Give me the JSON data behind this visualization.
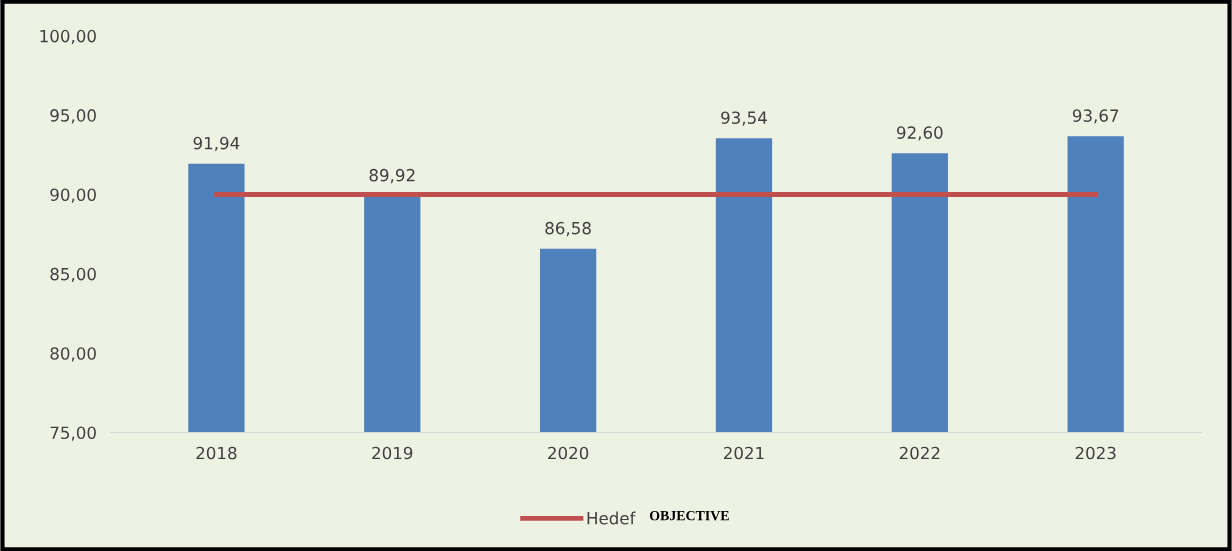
{
  "chart_data": {
    "type": "bar",
    "categories": [
      "2018",
      "2019",
      "2020",
      "2021",
      "2022",
      "2023"
    ],
    "series": [
      {
        "color": "#4f81bd",
        "values": [
          91.94,
          89.92,
          86.58,
          93.54,
          92.6,
          93.67
        ],
        "value_labels": [
          "91,94",
          "89,92",
          "86,58",
          "93,54",
          "92,60",
          "93,67"
        ]
      },
      {
        "type": "line",
        "name": "Hedef",
        "color": "#c0504d",
        "values": [
          90,
          90,
          90,
          90,
          90,
          90
        ]
      }
    ],
    "ylim": [
      75,
      100
    ],
    "yticks": [
      {
        "value": 75,
        "label": "75,00"
      },
      {
        "value": 80,
        "label": "80,00"
      },
      {
        "value": 85,
        "label": "85,00"
      },
      {
        "value": 90,
        "label": "90,00"
      },
      {
        "value": 95,
        "label": "95,00"
      },
      {
        "value": 100,
        "label": "100,00"
      }
    ],
    "grid": false,
    "legend": "bottom",
    "marker": "none",
    "annotations": [
      "OBJECTIVE"
    ]
  }
}
